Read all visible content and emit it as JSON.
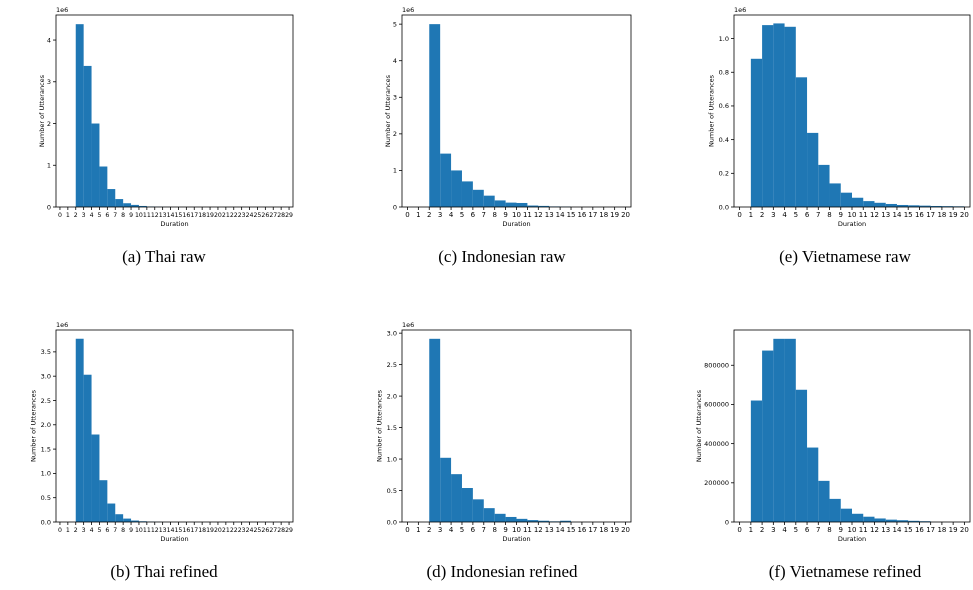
{
  "chart_data": [
    {
      "type": "bar",
      "caption": "(a) Thai raw",
      "offset_label": "1e6",
      "xlabel": "Duration",
      "ylabel": "Number of Utterances",
      "x_ticks": [
        "0",
        "1",
        "2",
        "3",
        "4",
        "5",
        "6",
        "7",
        "8",
        "9",
        "10",
        "11",
        "12",
        "13",
        "14",
        "15",
        "16",
        "17",
        "18",
        "19",
        "20",
        "21",
        "22",
        "23",
        "24",
        "25",
        "26",
        "27",
        "28",
        "29"
      ],
      "xlim": [
        -0.5,
        29.5
      ],
      "ylim": [
        0,
        4.6
      ],
      "y_ticks": [
        "0",
        "1",
        "2",
        "3",
        "4"
      ],
      "bins": [
        {
          "x0": 2,
          "x1": 3,
          "value": 4.38
        },
        {
          "x0": 3,
          "x1": 4,
          "value": 3.38
        },
        {
          "x0": 4,
          "x1": 5,
          "value": 2.0
        },
        {
          "x0": 5,
          "x1": 6,
          "value": 0.97
        },
        {
          "x0": 6,
          "x1": 7,
          "value": 0.43
        },
        {
          "x0": 7,
          "x1": 8,
          "value": 0.19
        },
        {
          "x0": 8,
          "x1": 9,
          "value": 0.09
        },
        {
          "x0": 9,
          "x1": 10,
          "value": 0.05
        },
        {
          "x0": 10,
          "x1": 11,
          "value": 0.025
        },
        {
          "x0": 11,
          "x1": 12,
          "value": 0.012
        },
        {
          "x0": 12,
          "x1": 13,
          "value": 0.006
        },
        {
          "x0": 13,
          "x1": 14,
          "value": 0.003
        }
      ]
    },
    {
      "type": "bar",
      "caption": "(b) Thai refined",
      "offset_label": "1e6",
      "xlabel": "Duration",
      "ylabel": "Number of Utterances",
      "x_ticks": [
        "0",
        "1",
        "2",
        "3",
        "4",
        "5",
        "6",
        "7",
        "8",
        "9",
        "10",
        "11",
        "12",
        "13",
        "14",
        "15",
        "16",
        "17",
        "18",
        "19",
        "20",
        "21",
        "22",
        "23",
        "24",
        "25",
        "26",
        "27",
        "28",
        "29"
      ],
      "xlim": [
        -0.5,
        29.5
      ],
      "ylim": [
        0,
        3.95
      ],
      "y_ticks": [
        "0.0",
        "0.5",
        "1.0",
        "1.5",
        "2.0",
        "2.5",
        "3.0",
        "3.5"
      ],
      "bins": [
        {
          "x0": 2,
          "x1": 3,
          "value": 3.77
        },
        {
          "x0": 3,
          "x1": 4,
          "value": 3.03
        },
        {
          "x0": 4,
          "x1": 5,
          "value": 1.8
        },
        {
          "x0": 5,
          "x1": 6,
          "value": 0.86
        },
        {
          "x0": 6,
          "x1": 7,
          "value": 0.38
        },
        {
          "x0": 7,
          "x1": 8,
          "value": 0.16
        },
        {
          "x0": 8,
          "x1": 9,
          "value": 0.07
        },
        {
          "x0": 9,
          "x1": 10,
          "value": 0.03
        },
        {
          "x0": 10,
          "x1": 11,
          "value": 0.015
        },
        {
          "x0": 11,
          "x1": 12,
          "value": 0.007
        },
        {
          "x0": 12,
          "x1": 13,
          "value": 0.003
        }
      ]
    },
    {
      "type": "bar",
      "caption": "(c) Indonesian raw",
      "offset_label": "1e6",
      "xlabel": "Duration",
      "ylabel": "Number of Utterances",
      "x_ticks": [
        "0",
        "1",
        "2",
        "3",
        "4",
        "5",
        "6",
        "7",
        "8",
        "9",
        "10",
        "11",
        "12",
        "13",
        "14",
        "15",
        "16",
        "17",
        "18",
        "19",
        "20"
      ],
      "xlim": [
        -0.5,
        20.5
      ],
      "ylim": [
        0,
        5.25
      ],
      "y_ticks": [
        "0",
        "1",
        "2",
        "3",
        "4",
        "5"
      ],
      "bins": [
        {
          "x0": 2,
          "x1": 3,
          "value": 5.0
        },
        {
          "x0": 3,
          "x1": 4,
          "value": 1.46
        },
        {
          "x0": 4,
          "x1": 5,
          "value": 1.0
        },
        {
          "x0": 5,
          "x1": 6,
          "value": 0.7
        },
        {
          "x0": 6,
          "x1": 7,
          "value": 0.47
        },
        {
          "x0": 7,
          "x1": 8,
          "value": 0.31
        },
        {
          "x0": 8,
          "x1": 9,
          "value": 0.18
        },
        {
          "x0": 9,
          "x1": 10,
          "value": 0.12
        },
        {
          "x0": 10,
          "x1": 11,
          "value": 0.11
        },
        {
          "x0": 11,
          "x1": 12,
          "value": 0.04
        },
        {
          "x0": 12,
          "x1": 13,
          "value": 0.03
        },
        {
          "x0": 13,
          "x1": 14,
          "value": 0.015
        },
        {
          "x0": 14,
          "x1": 15,
          "value": 0.01
        }
      ]
    },
    {
      "type": "bar",
      "caption": "(d) Indonesian refined",
      "offset_label": "1e6",
      "xlabel": "Duration",
      "ylabel": "Number of Utterances",
      "x_ticks": [
        "0",
        "1",
        "2",
        "3",
        "4",
        "5",
        "6",
        "7",
        "8",
        "9",
        "10",
        "11",
        "12",
        "13",
        "14",
        "15",
        "16",
        "17",
        "18",
        "19",
        "20"
      ],
      "xlim": [
        -0.5,
        20.5
      ],
      "ylim": [
        0,
        3.05
      ],
      "y_ticks": [
        "0.0",
        "0.5",
        "1.0",
        "1.5",
        "2.0",
        "2.5",
        "3.0"
      ],
      "bins": [
        {
          "x0": 2,
          "x1": 3,
          "value": 2.91
        },
        {
          "x0": 3,
          "x1": 4,
          "value": 1.02
        },
        {
          "x0": 4,
          "x1": 5,
          "value": 0.76
        },
        {
          "x0": 5,
          "x1": 6,
          "value": 0.54
        },
        {
          "x0": 6,
          "x1": 7,
          "value": 0.36
        },
        {
          "x0": 7,
          "x1": 8,
          "value": 0.22
        },
        {
          "x0": 8,
          "x1": 9,
          "value": 0.13
        },
        {
          "x0": 9,
          "x1": 10,
          "value": 0.08
        },
        {
          "x0": 10,
          "x1": 11,
          "value": 0.05
        },
        {
          "x0": 11,
          "x1": 12,
          "value": 0.03
        },
        {
          "x0": 12,
          "x1": 13,
          "value": 0.02
        },
        {
          "x0": 13,
          "x1": 14,
          "value": 0.01
        },
        {
          "x0": 14,
          "x1": 15,
          "value": 0.02
        }
      ]
    },
    {
      "type": "bar",
      "caption": "(e) Vietnamese raw",
      "offset_label": "1e6",
      "xlabel": "Duration",
      "ylabel": "Number of Utterances",
      "x_ticks": [
        "0",
        "1",
        "2",
        "3",
        "4",
        "5",
        "6",
        "7",
        "8",
        "9",
        "10",
        "11",
        "12",
        "13",
        "14",
        "15",
        "16",
        "17",
        "18",
        "19",
        "20"
      ],
      "xlim": [
        -0.5,
        20.5
      ],
      "ylim": [
        0,
        1.14
      ],
      "y_ticks": [
        "0.0",
        "0.2",
        "0.4",
        "0.6",
        "0.8",
        "1.0"
      ],
      "bins": [
        {
          "x0": 1,
          "x1": 2,
          "value": 0.88
        },
        {
          "x0": 2,
          "x1": 3,
          "value": 1.08
        },
        {
          "x0": 3,
          "x1": 4,
          "value": 1.09
        },
        {
          "x0": 4,
          "x1": 5,
          "value": 1.07
        },
        {
          "x0": 5,
          "x1": 6,
          "value": 0.77
        },
        {
          "x0": 6,
          "x1": 7,
          "value": 0.44
        },
        {
          "x0": 7,
          "x1": 8,
          "value": 0.25
        },
        {
          "x0": 8,
          "x1": 9,
          "value": 0.14
        },
        {
          "x0": 9,
          "x1": 10,
          "value": 0.085
        },
        {
          "x0": 10,
          "x1": 11,
          "value": 0.055
        },
        {
          "x0": 11,
          "x1": 12,
          "value": 0.035
        },
        {
          "x0": 12,
          "x1": 13,
          "value": 0.025
        },
        {
          "x0": 13,
          "x1": 14,
          "value": 0.018
        },
        {
          "x0": 14,
          "x1": 15,
          "value": 0.012
        },
        {
          "x0": 15,
          "x1": 16,
          "value": 0.01
        },
        {
          "x0": 16,
          "x1": 17,
          "value": 0.008
        },
        {
          "x0": 17,
          "x1": 18,
          "value": 0.006
        },
        {
          "x0": 18,
          "x1": 19,
          "value": 0.005
        },
        {
          "x0": 19,
          "x1": 20,
          "value": 0.004
        }
      ]
    },
    {
      "type": "bar",
      "caption": "(f) Vietnamese refined",
      "offset_label": "",
      "xlabel": "Duration",
      "ylabel": "Number of Utterances",
      "x_ticks": [
        "0",
        "1",
        "2",
        "3",
        "4",
        "5",
        "6",
        "7",
        "8",
        "9",
        "10",
        "11",
        "12",
        "13",
        "14",
        "15",
        "16",
        "17",
        "18",
        "19",
        "20"
      ],
      "xlim": [
        -0.5,
        20.5
      ],
      "ylim": [
        0,
        980000
      ],
      "y_ticks": [
        "0",
        "200000",
        "400000",
        "600000",
        "800000"
      ],
      "bins": [
        {
          "x0": 1,
          "x1": 2,
          "value": 620000
        },
        {
          "x0": 2,
          "x1": 3,
          "value": 875000
        },
        {
          "x0": 3,
          "x1": 4,
          "value": 935000
        },
        {
          "x0": 4,
          "x1": 5,
          "value": 935000
        },
        {
          "x0": 5,
          "x1": 6,
          "value": 675000
        },
        {
          "x0": 6,
          "x1": 7,
          "value": 380000
        },
        {
          "x0": 7,
          "x1": 8,
          "value": 210000
        },
        {
          "x0": 8,
          "x1": 9,
          "value": 118000
        },
        {
          "x0": 9,
          "x1": 10,
          "value": 68000
        },
        {
          "x0": 10,
          "x1": 11,
          "value": 42000
        },
        {
          "x0": 11,
          "x1": 12,
          "value": 27000
        },
        {
          "x0": 12,
          "x1": 13,
          "value": 18000
        },
        {
          "x0": 13,
          "x1": 14,
          "value": 12000
        },
        {
          "x0": 14,
          "x1": 15,
          "value": 9000
        },
        {
          "x0": 15,
          "x1": 16,
          "value": 6000
        },
        {
          "x0": 16,
          "x1": 17,
          "value": 4000
        }
      ]
    }
  ],
  "colors": {
    "bar": "#1f77b4",
    "axis": "#000000"
  }
}
